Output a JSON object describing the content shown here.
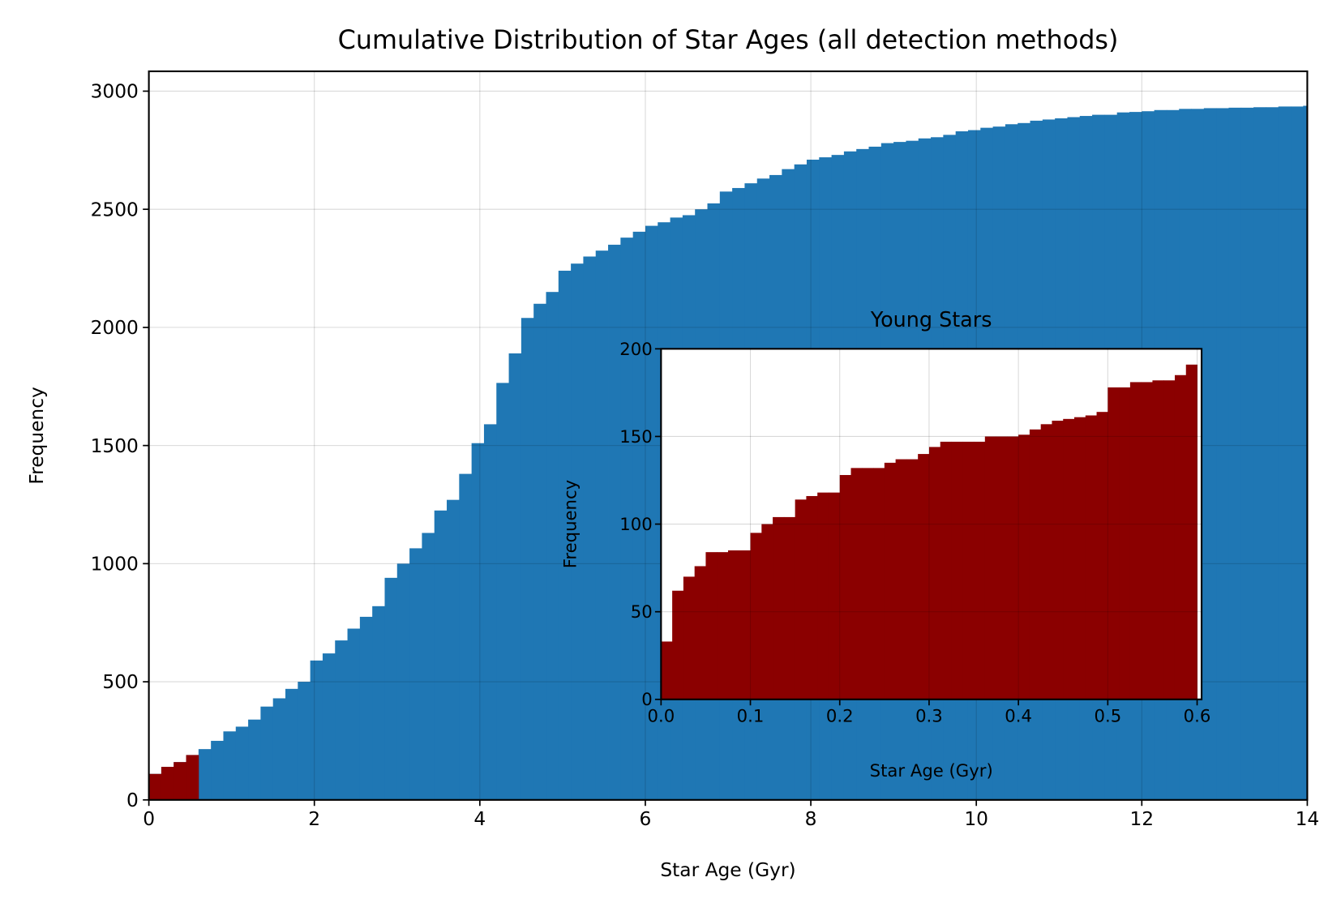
{
  "chart_data": [
    {
      "type": "histogram",
      "title": "Cumulative Distribution of Star Ages (all detection methods)",
      "x_label": "Star Age (Gyr)",
      "y_label": "Frequency",
      "color": "#1f77b4",
      "bins": [
        0,
        0.15,
        0.3,
        0.45,
        0.6,
        0.75,
        0.9,
        1.05,
        1.2,
        1.35,
        1.5,
        1.65,
        1.8,
        1.95,
        2.1,
        2.25,
        2.4,
        2.55,
        2.7,
        2.85,
        3,
        3.15,
        3.3,
        3.45,
        3.6,
        3.75,
        3.9,
        4.05,
        4.2,
        4.35,
        4.5,
        4.65,
        4.8,
        4.95,
        5.1,
        5.25,
        5.4,
        5.55,
        5.7,
        5.85,
        6,
        6.15,
        6.3,
        6.45,
        6.6,
        6.75,
        6.9,
        7.05,
        7.2,
        7.35,
        7.5,
        7.65,
        7.8,
        7.95,
        8.1,
        8.25,
        8.4,
        8.55,
        8.7,
        8.85,
        9,
        9.15,
        9.3,
        9.45,
        9.6,
        9.75,
        9.9,
        10.05,
        10.2,
        10.35,
        10.5,
        10.65,
        10.8,
        10.95,
        11.1,
        11.25,
        11.4,
        11.55,
        11.7,
        11.85,
        12,
        12.15,
        12.3,
        12.45,
        12.6,
        12.75,
        12.9,
        13.05,
        13.2,
        13.35,
        13.5,
        13.65,
        13.8,
        13.95,
        14
      ],
      "values": [
        110,
        140,
        160,
        190,
        215,
        250,
        290,
        310,
        340,
        395,
        430,
        470,
        500,
        590,
        620,
        675,
        725,
        775,
        820,
        940,
        1000,
        1065,
        1130,
        1225,
        1270,
        1380,
        1510,
        1590,
        1765,
        1890,
        2040,
        2100,
        2150,
        2240,
        2270,
        2300,
        2325,
        2350,
        2380,
        2405,
        2430,
        2445,
        2465,
        2475,
        2500,
        2525,
        2575,
        2590,
        2610,
        2630,
        2645,
        2670,
        2690,
        2710,
        2720,
        2730,
        2745,
        2755,
        2765,
        2780,
        2785,
        2790,
        2800,
        2805,
        2815,
        2830,
        2835,
        2845,
        2850,
        2860,
        2865,
        2875,
        2880,
        2885,
        2890,
        2895,
        2900,
        2900,
        2910,
        2912,
        2915,
        2920,
        2920,
        2925,
        2925,
        2928,
        2928,
        2930,
        2930,
        2932,
        2932,
        2935,
        2935,
        2938
      ],
      "overlay": {
        "color": "#8b0000",
        "bins": [
          0,
          0.15,
          0.3,
          0.45,
          0.6
        ],
        "values": [
          110,
          140,
          160,
          190
        ]
      },
      "xlim": [
        0,
        14
      ],
      "xticks": [
        0,
        2,
        4,
        6,
        8,
        10,
        12,
        14
      ],
      "ylim": [
        0,
        3084
      ],
      "yticks": [
        0,
        500,
        1000,
        1500,
        2000,
        2500,
        3000
      ],
      "grid": true
    },
    {
      "type": "histogram",
      "title": "Young Stars",
      "x_label": "Star Age (Gyr)",
      "y_label": "Frequency",
      "color": "#8b0000",
      "bins": [
        0,
        0.0125,
        0.025,
        0.0375,
        0.05,
        0.0625,
        0.075,
        0.0875,
        0.1,
        0.1125,
        0.125,
        0.1375,
        0.15,
        0.1625,
        0.175,
        0.1875,
        0.2,
        0.2125,
        0.225,
        0.2375,
        0.25,
        0.2625,
        0.275,
        0.2875,
        0.3,
        0.3125,
        0.325,
        0.3375,
        0.35,
        0.3625,
        0.375,
        0.3875,
        0.4,
        0.4125,
        0.425,
        0.4375,
        0.45,
        0.4625,
        0.475,
        0.4875,
        0.5,
        0.5125,
        0.525,
        0.5375,
        0.55,
        0.5625,
        0.575,
        0.5875,
        0.6
      ],
      "values": [
        33,
        62,
        70,
        76,
        84,
        84,
        85,
        85,
        95,
        100,
        104,
        104,
        114,
        116,
        118,
        118,
        128,
        132,
        132,
        132,
        135,
        137,
        137,
        140,
        144,
        147,
        147,
        147,
        147,
        150,
        150,
        150,
        151,
        154,
        157,
        159,
        160,
        161,
        162,
        164,
        178,
        178,
        181,
        181,
        182,
        182,
        185,
        191
      ],
      "xlim": [
        0,
        0.605
      ],
      "xticks": [
        {
          "value": 0,
          "label": "0.0"
        },
        0.1,
        0.2,
        0.3,
        0.4,
        0.5,
        0.6
      ],
      "ylim": [
        0,
        200
      ],
      "yticks": [
        0,
        50,
        100,
        150,
        200
      ],
      "grid": true
    }
  ]
}
